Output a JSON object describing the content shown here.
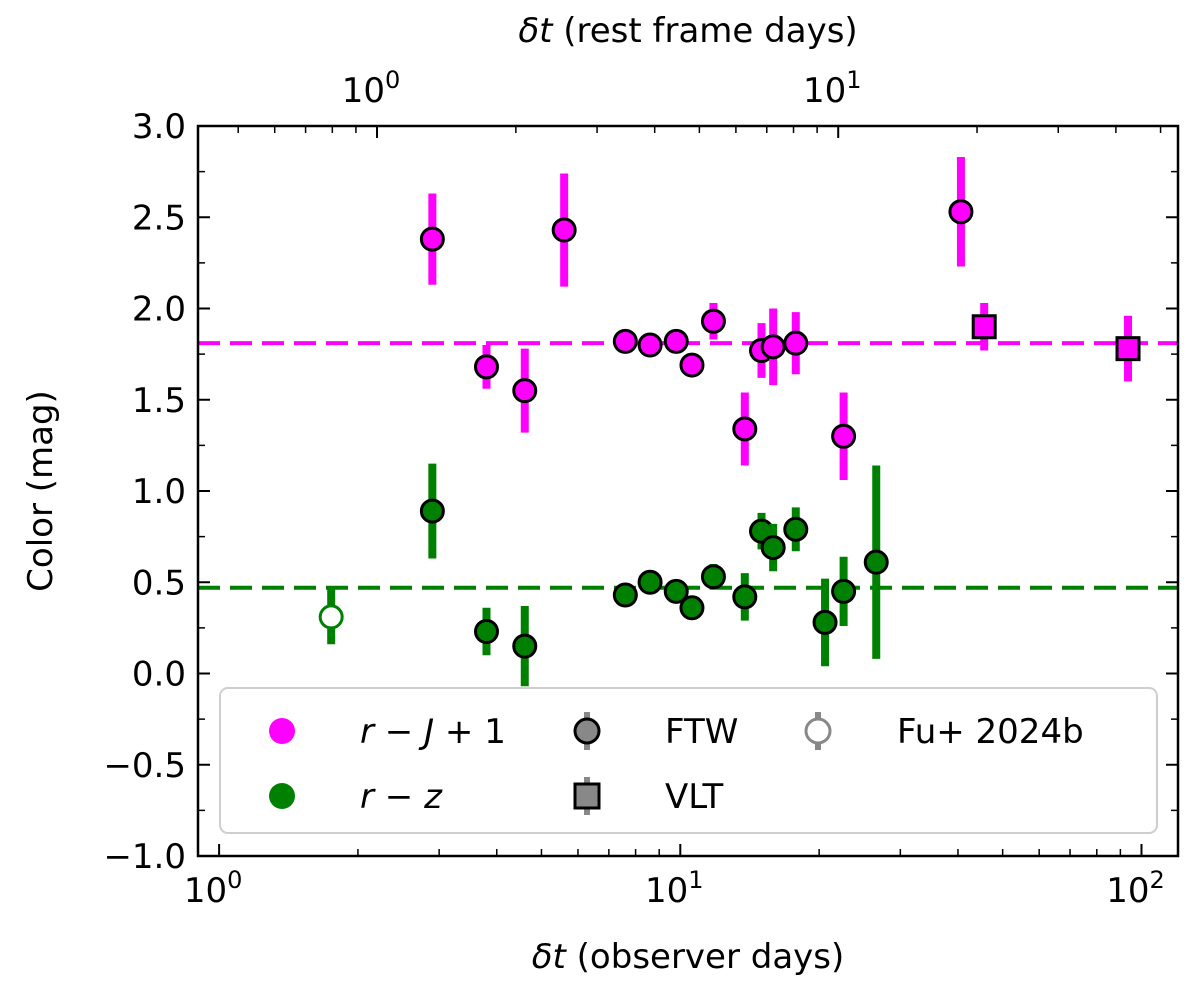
{
  "chart_data": {
    "type": "scatter",
    "xscale": "log",
    "xlabel_prefix": "δt",
    "xlabel_suffix": " (observer days)",
    "x2label_prefix": "δt",
    "x2label_suffix": " (rest frame days)",
    "ylabel": "Color (mag)",
    "xlim": [
      0.9,
      120
    ],
    "ylim": [
      -1.0,
      3.0
    ],
    "x_ticks": [
      {
        "value": 1,
        "base": "10",
        "exp": "0"
      },
      {
        "value": 10,
        "base": "10",
        "exp": "1"
      },
      {
        "value": 100,
        "base": "10",
        "exp": "2"
      }
    ],
    "x2_ticks": [
      {
        "value": 1,
        "base": "10",
        "exp": "0"
      },
      {
        "value": 10,
        "base": "10",
        "exp": "1"
      }
    ],
    "x2_scale_factor": 2.2,
    "y_ticks": [
      {
        "value": 3.0,
        "label": "3.0"
      },
      {
        "value": 2.5,
        "label": "2.5"
      },
      {
        "value": 2.0,
        "label": "2.0"
      },
      {
        "value": 1.5,
        "label": "1.5"
      },
      {
        "value": 1.0,
        "label": "1.0"
      },
      {
        "value": 0.5,
        "label": "0.5"
      },
      {
        "value": 0.0,
        "label": "0.0"
      },
      {
        "value": -0.5,
        "label": "−0.5"
      },
      {
        "value": -1.0,
        "label": "−1.0"
      }
    ],
    "series": [
      {
        "name": "r − J + 1",
        "color": "#ff00ff",
        "mean": 1.81,
        "points": [
          {
            "x": 2.9,
            "y": 2.38,
            "err": 0.25,
            "marker": "circle"
          },
          {
            "x": 3.8,
            "y": 1.68,
            "err": 0.12,
            "marker": "circle"
          },
          {
            "x": 4.6,
            "y": 1.55,
            "err": 0.23,
            "marker": "circle"
          },
          {
            "x": 5.6,
            "y": 2.43,
            "err": 0.31,
            "marker": "circle"
          },
          {
            "x": 7.6,
            "y": 1.82,
            "err": 0.06,
            "marker": "circle"
          },
          {
            "x": 8.6,
            "y": 1.8,
            "err": 0.06,
            "marker": "circle"
          },
          {
            "x": 9.8,
            "y": 1.82,
            "err": 0.06,
            "marker": "circle"
          },
          {
            "x": 10.6,
            "y": 1.69,
            "err": 0.06,
            "marker": "circle"
          },
          {
            "x": 11.8,
            "y": 1.93,
            "err": 0.1,
            "marker": "circle"
          },
          {
            "x": 13.8,
            "y": 1.34,
            "err": 0.2,
            "marker": "circle"
          },
          {
            "x": 15.0,
            "y": 1.77,
            "err": 0.15,
            "marker": "circle"
          },
          {
            "x": 15.9,
            "y": 1.79,
            "err": 0.21,
            "marker": "circle"
          },
          {
            "x": 17.8,
            "y": 1.81,
            "err": 0.17,
            "marker": "circle"
          },
          {
            "x": 22.6,
            "y": 1.3,
            "err": 0.24,
            "marker": "circle"
          },
          {
            "x": 40.6,
            "y": 2.53,
            "err": 0.3,
            "marker": "circle"
          },
          {
            "x": 45.6,
            "y": 1.9,
            "err": 0.13,
            "marker": "square"
          },
          {
            "x": 93.5,
            "y": 1.78,
            "err": 0.18,
            "marker": "square"
          }
        ]
      },
      {
        "name": "r − z",
        "color": "#008000",
        "mean": 0.47,
        "points": [
          {
            "x": 1.75,
            "y": 0.31,
            "err": 0.15,
            "marker": "open-circle"
          },
          {
            "x": 2.9,
            "y": 0.89,
            "err": 0.26,
            "marker": "circle"
          },
          {
            "x": 3.8,
            "y": 0.23,
            "err": 0.13,
            "marker": "circle"
          },
          {
            "x": 4.6,
            "y": 0.15,
            "err": 0.22,
            "marker": "circle"
          },
          {
            "x": 7.6,
            "y": 0.43,
            "err": 0.06,
            "marker": "circle"
          },
          {
            "x": 8.6,
            "y": 0.5,
            "err": 0.06,
            "marker": "circle"
          },
          {
            "x": 9.8,
            "y": 0.45,
            "err": 0.06,
            "marker": "circle"
          },
          {
            "x": 10.6,
            "y": 0.36,
            "err": 0.06,
            "marker": "circle"
          },
          {
            "x": 11.8,
            "y": 0.53,
            "err": 0.07,
            "marker": "circle"
          },
          {
            "x": 13.8,
            "y": 0.42,
            "err": 0.13,
            "marker": "circle"
          },
          {
            "x": 15.0,
            "y": 0.78,
            "err": 0.1,
            "marker": "circle"
          },
          {
            "x": 15.9,
            "y": 0.69,
            "err": 0.13,
            "marker": "circle"
          },
          {
            "x": 17.8,
            "y": 0.79,
            "err": 0.12,
            "marker": "circle"
          },
          {
            "x": 20.6,
            "y": 0.28,
            "err": 0.24,
            "marker": "circle"
          },
          {
            "x": 22.6,
            "y": 0.45,
            "err": 0.19,
            "marker": "circle"
          },
          {
            "x": 26.6,
            "y": 0.61,
            "err": 0.53,
            "marker": "circle"
          }
        ]
      }
    ],
    "legend": {
      "placement": "lower-center",
      "entries": [
        {
          "label_parts": [
            "r",
            " − ",
            "J",
            " + 1"
          ],
          "kind": "filled-circle",
          "color": "#ff00ff"
        },
        {
          "label_parts": [
            "r",
            " − ",
            "z"
          ],
          "kind": "filled-circle",
          "color": "#008000"
        },
        {
          "label": "FTW",
          "kind": "gray-circle-errbar"
        },
        {
          "label": "VLT",
          "kind": "gray-square-errbar"
        },
        {
          "label": "Fu+ 2024b",
          "kind": "open-circle-errbar"
        }
      ]
    }
  }
}
